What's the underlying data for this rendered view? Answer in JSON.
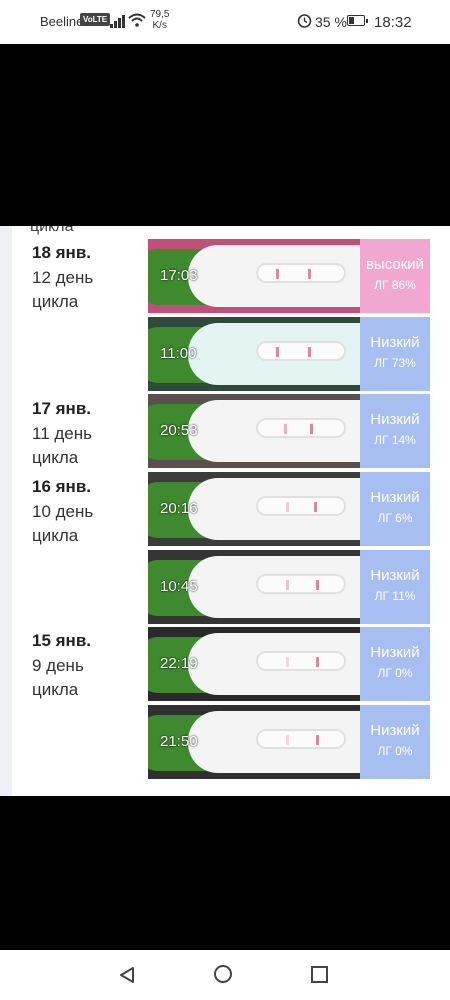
{
  "status_bar": {
    "carrier": "Beeline",
    "volte": "VoLTE",
    "speed_value": "79,5",
    "speed_unit": "K/s",
    "battery": "35 %",
    "time": "18:32",
    "icons": [
      "signal-icon",
      "wifi-icon",
      "alarm-icon",
      "battery-icon"
    ]
  },
  "cut_text": "цикла",
  "days": [
    {
      "date": "18 янв.",
      "cycle": "12 день цикла"
    },
    {
      "date": "17 янв.",
      "cycle": "11 день цикла"
    },
    {
      "date": "16 янв.",
      "cycle": "10 день цикла"
    },
    {
      "date": "15 янв.",
      "cycle": "9 день цикла"
    }
  ],
  "tests": [
    {
      "time": "17:03",
      "level": "высокий",
      "lh": "ЛГ 86%",
      "level_color": "#f0a8d0"
    },
    {
      "time": "11:00",
      "level": "Низкий",
      "lh": "ЛГ 73%",
      "level_color": "#a6bff0"
    },
    {
      "time": "20:53",
      "level": "Низкий",
      "lh": "ЛГ 14%",
      "level_color": "#a6bff0"
    },
    {
      "time": "20:16",
      "level": "Низкий",
      "lh": "ЛГ 6%",
      "level_color": "#a6bff0"
    },
    {
      "time": "10:45",
      "level": "Низкий",
      "lh": "ЛГ 11%",
      "level_color": "#a6bff0"
    },
    {
      "time": "22:19",
      "level": "Низкий",
      "lh": "ЛГ 0%",
      "level_color": "#a6bff0"
    },
    {
      "time": "21:50",
      "level": "Низкий",
      "lh": "ЛГ 0%",
      "level_color": "#a6bff0"
    }
  ],
  "nav_bar": {
    "icons": [
      "back-icon",
      "home-icon",
      "recent-apps-icon"
    ]
  }
}
